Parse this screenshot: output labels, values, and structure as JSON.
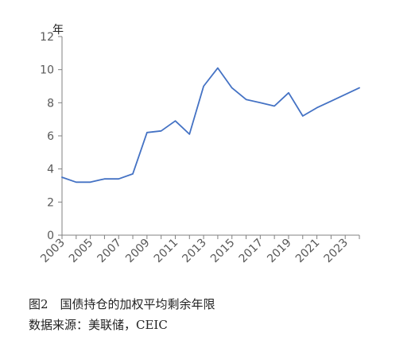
{
  "caption": {
    "title": "图2　国债持仓的加权平均剩余年限",
    "source": "数据来源：美联储，CEIC"
  },
  "colors": {
    "line": "#4472C4",
    "axis": "#808080",
    "text": "#595959"
  },
  "chart_data": {
    "type": "line",
    "title": "",
    "xlabel": "",
    "ylabel": "年",
    "ylim": [
      0,
      12
    ],
    "y_ticks": [
      0,
      2,
      4,
      6,
      8,
      10,
      12
    ],
    "xlim": [
      2003,
      2024
    ],
    "x_tick_labels": [
      "2003",
      "2005",
      "2007",
      "2009",
      "2011",
      "2013",
      "2015",
      "2017",
      "2019",
      "2021",
      "2023"
    ],
    "grid": false,
    "legend": "none",
    "series": [
      {
        "x": [
          2003,
          2004,
          2005,
          2006,
          2007,
          2008,
          2009,
          2010,
          2011,
          2012,
          2013,
          2014,
          2015,
          2016,
          2017,
          2018,
          2019,
          2020,
          2021,
          2022,
          2023,
          2024
        ],
        "values": [
          3.5,
          3.2,
          3.2,
          3.4,
          3.4,
          3.7,
          6.2,
          6.3,
          6.9,
          6.1,
          9.0,
          10.1,
          8.9,
          8.2,
          8.0,
          7.8,
          8.6,
          7.2,
          7.7,
          8.1,
          8.5,
          8.9
        ]
      }
    ]
  }
}
